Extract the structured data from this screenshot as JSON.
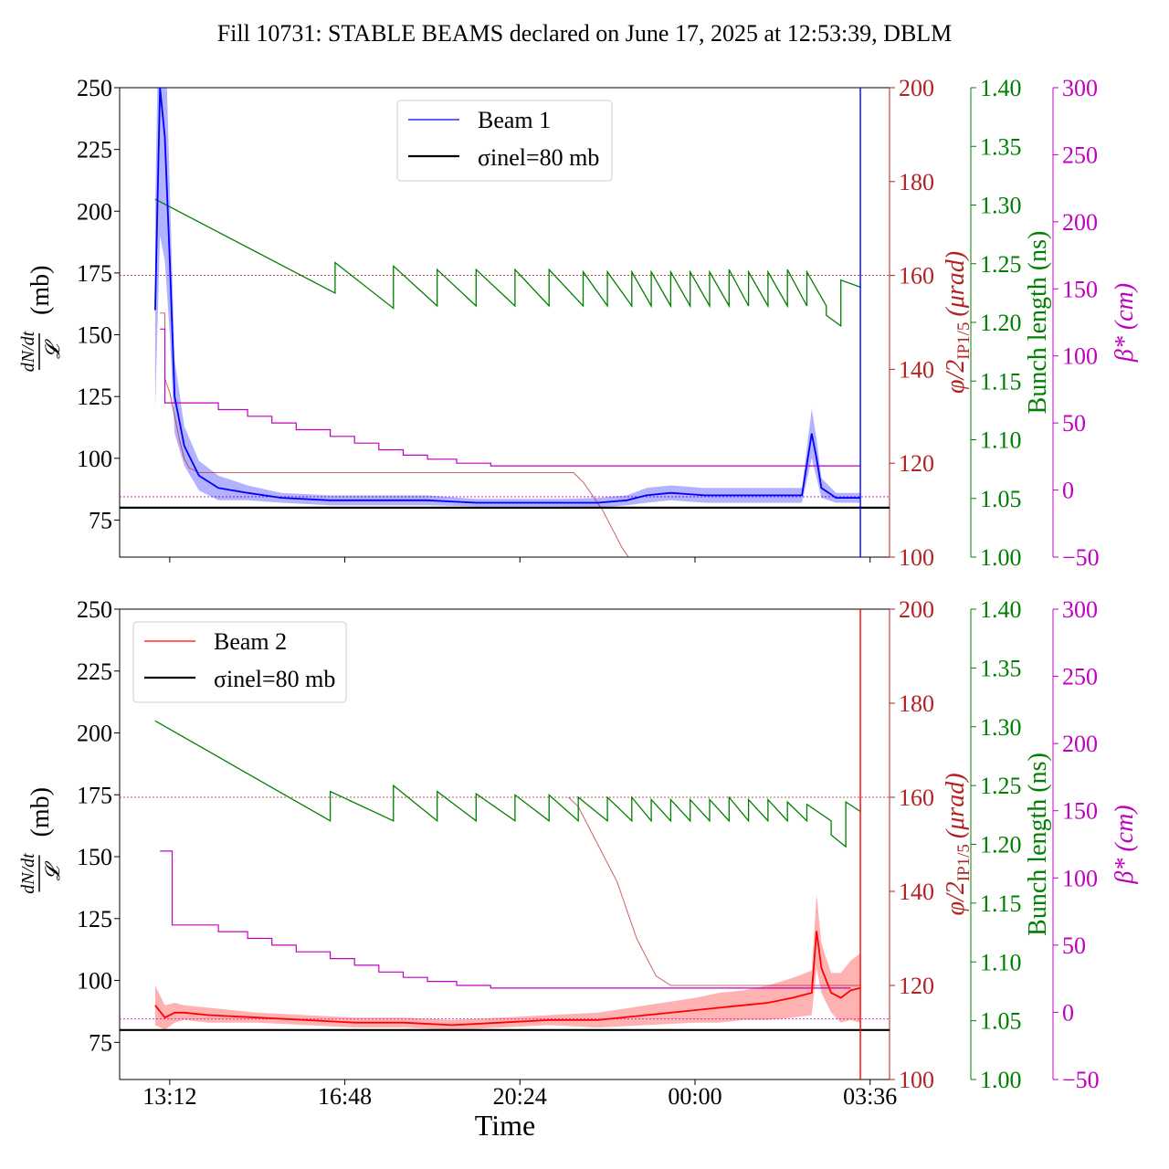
{
  "figure": {
    "title": "Fill 10731: STABLE BEAMS declared on June 17, 2025 at 12:53:39, DBLM",
    "xlabel": "Time",
    "x_tick_labels": [
      "13:12",
      "16:48",
      "20:24",
      "00:00",
      "03:36"
    ],
    "x_tick_hours": [
      13.2,
      16.8,
      20.4,
      24.0,
      27.6
    ],
    "x_range_hours": [
      12.17,
      28.0
    ],
    "colors": {
      "beam1": "#0000ff",
      "beam2": "#ff0000",
      "angle": "#b22222",
      "bunch": "#008000",
      "beta": "#c000c0",
      "ref": "#000000"
    },
    "axes": {
      "left": {
        "label_num": "dN/dt",
        "label_den": "𝓛",
        "label_unit": "(mb)",
        "range": [
          60,
          250
        ],
        "ticks": [
          75,
          100,
          125,
          150,
          175,
          200,
          225,
          250
        ]
      },
      "angle": {
        "label": "φ/2",
        "label_sub": "IP1/5",
        "label_unit": "(μrad)",
        "range": [
          100,
          200
        ],
        "ticks": [
          100,
          120,
          140,
          160,
          180,
          200
        ]
      },
      "bunch": {
        "label": "Bunch length (ns)",
        "range": [
          1.0,
          1.4
        ],
        "ticks": [
          "1.00",
          "1.05",
          "1.10",
          "1.15",
          "1.20",
          "1.25",
          "1.30",
          "1.35",
          "1.40"
        ]
      },
      "beta": {
        "label": "β* (cm)",
        "range": [
          -50,
          300
        ],
        "ticks": [
          "−50",
          "0",
          "50",
          "100",
          "150",
          "200",
          "250",
          "300"
        ]
      }
    }
  },
  "chart_data": [
    {
      "type": "line",
      "panel": "Beam 1",
      "legend": [
        "Beam 1",
        "σinel=80 mb"
      ],
      "legend_position": "top-center",
      "reference_value_mb": 80,
      "end_marker_hour": 27.4,
      "beam_mb": {
        "x_hours": [
          12.9,
          13.0,
          13.1,
          13.2,
          13.3,
          13.5,
          13.8,
          14.2,
          14.8,
          15.5,
          16.5,
          17.5,
          18.5,
          19.5,
          20.5,
          21.2,
          22.0,
          22.6,
          23.0,
          23.5,
          24.2,
          25.0,
          25.8,
          26.2,
          26.4,
          26.5,
          26.6,
          26.9,
          27.4
        ],
        "y": [
          160,
          250,
          230,
          180,
          125,
          105,
          93,
          88,
          86,
          84,
          83,
          83,
          83,
          82,
          82,
          82,
          82,
          83,
          85,
          86,
          85,
          85,
          85,
          85,
          110,
          100,
          88,
          84,
          84
        ],
        "band_half_width": [
          40,
          60,
          50,
          30,
          15,
          8,
          6,
          5,
          3,
          2,
          2,
          2,
          2,
          1.5,
          1.5,
          1.5,
          2,
          2,
          3,
          3,
          3,
          3,
          3,
          3,
          10,
          8,
          4,
          2,
          2
        ]
      },
      "crossing_angle_urad": {
        "x_hours": [
          12.9,
          13.0,
          13.0,
          13.1,
          13.1,
          13.2,
          13.3,
          13.4,
          13.5,
          13.6,
          13.8,
          14.0,
          14.5,
          15.0,
          18.0,
          20.0,
          21.5,
          21.7,
          21.9,
          22.1,
          22.3,
          22.5,
          22.7,
          22.9,
          23.1,
          23.3,
          23.5,
          27.4
        ],
        "y": [
          null,
          152,
          152,
          152,
          138,
          135,
          130,
          125,
          121,
          119,
          118,
          118,
          118,
          118,
          118,
          118,
          118,
          116,
          113,
          110,
          106,
          102,
          99,
          96,
          93,
          90,
          87,
          87
        ]
      },
      "bunch_length_ns": {
        "x_hours": [
          12.9,
          16.6,
          16.6,
          17.8,
          17.8,
          18.7,
          18.7,
          19.5,
          19.5,
          20.3,
          20.3,
          21.0,
          21.0,
          21.7,
          21.7,
          22.2,
          22.2,
          22.7,
          22.7,
          23.1,
          23.1,
          23.5,
          23.5,
          23.9,
          23.9,
          24.3,
          24.3,
          24.7,
          24.7,
          25.1,
          25.1,
          25.5,
          25.5,
          25.9,
          25.9,
          26.3,
          26.3,
          26.7,
          26.7,
          27.0,
          27.0,
          27.4
        ],
        "y": [
          1.305,
          1.225,
          1.251,
          1.212,
          1.248,
          1.214,
          1.245,
          1.214,
          1.245,
          1.214,
          1.245,
          1.214,
          1.245,
          1.214,
          1.243,
          1.214,
          1.243,
          1.214,
          1.243,
          1.214,
          1.243,
          1.214,
          1.243,
          1.214,
          1.243,
          1.214,
          1.243,
          1.214,
          1.245,
          1.214,
          1.243,
          1.214,
          1.243,
          1.214,
          1.245,
          1.214,
          1.243,
          1.214,
          1.206,
          1.197,
          1.236,
          1.23
        ]
      },
      "beta_star_cm": {
        "x_hours": [
          13.0,
          13.1,
          13.1,
          14.2,
          14.2,
          14.8,
          14.8,
          15.3,
          15.3,
          15.8,
          15.8,
          16.5,
          16.5,
          17.0,
          17.0,
          17.5,
          17.5,
          18.0,
          18.0,
          18.5,
          18.5,
          19.1,
          19.1,
          19.8,
          19.8,
          20.4,
          20.4,
          23.5,
          23.5,
          27.4
        ],
        "y": [
          120,
          120,
          65,
          65,
          60,
          60,
          55,
          55,
          50,
          50,
          45,
          45,
          40,
          40,
          35,
          35,
          30,
          30,
          26,
          26,
          23,
          23,
          20,
          20,
          18,
          18,
          18,
          18,
          18,
          18
        ]
      }
    },
    {
      "type": "line",
      "panel": "Beam 2",
      "legend": [
        "Beam 2",
        "σinel=80 mb"
      ],
      "legend_position": "top-left",
      "reference_value_mb": 80,
      "end_marker_hour": 27.4,
      "beam_mb": {
        "x_hours": [
          12.9,
          13.1,
          13.3,
          13.5,
          14.0,
          15.0,
          16.0,
          17.0,
          18.0,
          19.0,
          20.0,
          21.0,
          22.0,
          23.0,
          24.0,
          24.5,
          25.0,
          25.5,
          26.0,
          26.4,
          26.5,
          26.6,
          26.8,
          27.0,
          27.2,
          27.4
        ],
        "y": [
          90,
          85,
          87,
          87,
          86,
          85,
          84,
          83,
          83,
          82,
          83,
          84,
          84,
          86,
          88,
          89,
          90,
          91,
          93,
          95,
          120,
          105,
          95,
          93,
          96,
          97
        ],
        "band_half_width": [
          8,
          5,
          4,
          3,
          3,
          2,
          2,
          2,
          2,
          2,
          2,
          2,
          3,
          4,
          5,
          6,
          6,
          7,
          8,
          9,
          15,
          10,
          8,
          10,
          12,
          14
        ]
      },
      "crossing_angle_urad": {
        "x_hours": [
          21.4,
          21.6,
          21.8,
          22.0,
          22.2,
          22.4,
          22.6,
          22.8,
          23.0,
          23.2,
          23.5,
          27.4
        ],
        "y": [
          160,
          158,
          154,
          150,
          146,
          142,
          136,
          130,
          126,
          122,
          120,
          120
        ]
      },
      "bunch_length_ns": {
        "x_hours": [
          12.9,
          16.5,
          16.5,
          17.8,
          17.8,
          18.7,
          18.7,
          19.5,
          19.5,
          20.3,
          20.3,
          21.0,
          21.0,
          21.6,
          21.6,
          22.2,
          22.2,
          22.7,
          22.7,
          23.1,
          23.1,
          23.5,
          23.5,
          23.9,
          23.9,
          24.3,
          24.3,
          24.7,
          24.7,
          25.1,
          25.1,
          25.5,
          25.5,
          25.9,
          25.9,
          26.3,
          26.3,
          26.8,
          26.8,
          27.1,
          27.1,
          27.4
        ],
        "y": [
          1.305,
          1.22,
          1.245,
          1.22,
          1.25,
          1.22,
          1.245,
          1.22,
          1.243,
          1.22,
          1.242,
          1.22,
          1.242,
          1.22,
          1.24,
          1.22,
          1.24,
          1.22,
          1.24,
          1.22,
          1.238,
          1.22,
          1.238,
          1.22,
          1.238,
          1.22,
          1.238,
          1.22,
          1.24,
          1.22,
          1.238,
          1.22,
          1.238,
          1.22,
          1.236,
          1.22,
          1.234,
          1.22,
          1.208,
          1.198,
          1.236,
          1.228
        ]
      },
      "beta_star_cm": {
        "x_hours": [
          13.0,
          13.25,
          13.25,
          14.2,
          14.2,
          14.8,
          14.8,
          15.3,
          15.3,
          15.8,
          15.8,
          16.5,
          16.5,
          17.0,
          17.0,
          17.5,
          17.5,
          18.0,
          18.0,
          18.5,
          18.5,
          19.1,
          19.1,
          19.8,
          19.8,
          20.4,
          20.4,
          23.5,
          23.5,
          27.2
        ],
        "y": [
          120,
          120,
          65,
          65,
          60,
          60,
          55,
          55,
          50,
          50,
          45,
          45,
          40,
          40,
          35,
          35,
          30,
          30,
          26,
          26,
          23,
          23,
          20,
          20,
          18,
          18,
          18,
          18,
          18,
          18
        ]
      }
    }
  ]
}
